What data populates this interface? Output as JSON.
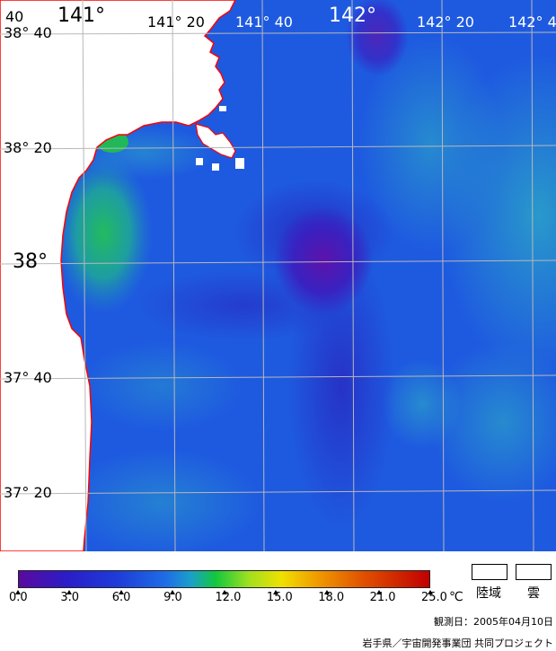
{
  "map": {
    "lon_labels": {
      "top_left_partial": "40",
      "lon141": "141°",
      "lon141_20": "141° 20",
      "lon141_40": "141° 40",
      "lon142": "142°",
      "lon142_20": "142° 20",
      "lon142_40_partial": "142° 4"
    },
    "lat_labels": {
      "lat38_40": "38° 40",
      "lat38_20": "38° 20",
      "lat38": "38°",
      "lat37_40": "37° 40",
      "lat37_20": "37° 20"
    },
    "colors": {
      "land": "#ffffff",
      "coast": "#ff0000",
      "grid": "#b8b8b8",
      "sea_base": "#1e50e0",
      "cold_core": "#5a10b0",
      "warm_coastal": "#20c060"
    }
  },
  "legend": {
    "ticks": [
      "0.0",
      "3.0",
      "6.0",
      "9.0",
      "12.0",
      "15.0",
      "18.0",
      "21.0",
      "25.0"
    ],
    "unit": "℃",
    "land_label": "陸域",
    "cloud_label": "雲",
    "observation_date": "観測日：2005年04月10日",
    "credit": "岩手県／宇宙開発事業団 共同プロジェクト"
  }
}
